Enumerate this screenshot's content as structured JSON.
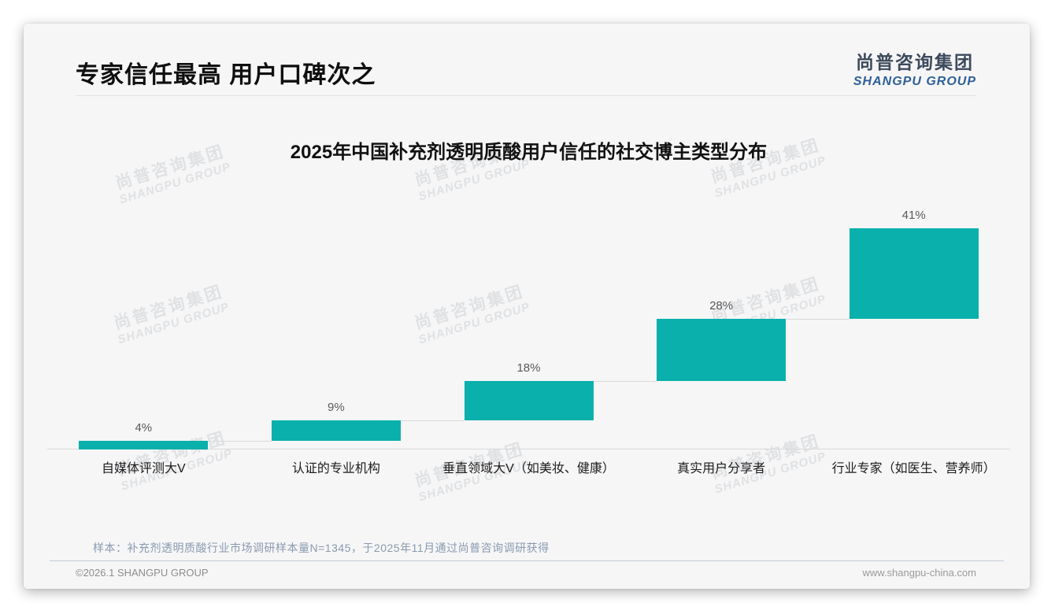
{
  "page": {
    "header_title": "专家信任最高 用户口碑次之",
    "logo": {
      "cn": "尚普咨询集团",
      "en": "SHANGPU GROUP"
    },
    "watermark": {
      "cn": "尚普咨询集团",
      "en": "SHANGPU GROUP"
    },
    "footnote": "样本：补充剂透明质酸行业市场调研样本量N=1345，于2025年11月通过尚普咨询调研获得",
    "footer": {
      "left": "©2026.1 SHANGPU GROUP",
      "right": "www.shangpu-china.com"
    }
  },
  "chart_data": {
    "type": "bar",
    "subtype": "stepped-waterfall",
    "title": "2025年中国补充剂透明质酸用户信任的社交博主类型分布",
    "categories": [
      "自媒体评测大V",
      "认证的专业机构",
      "垂直领域大V（如美妆、健康）",
      "真实用户分享者",
      "行业专家（如医生、营养师）"
    ],
    "values": [
      4,
      9,
      18,
      28,
      41
    ],
    "labels": [
      "4%",
      "9%",
      "18%",
      "28%",
      "41%"
    ],
    "unit": "%",
    "cumulative": true,
    "ylim": [
      0,
      100
    ],
    "bar_color": "#0ab0ab",
    "value_label_color": "#595959",
    "axis_color": "#d9d9d9",
    "grid": false,
    "legend_position": "none"
  }
}
